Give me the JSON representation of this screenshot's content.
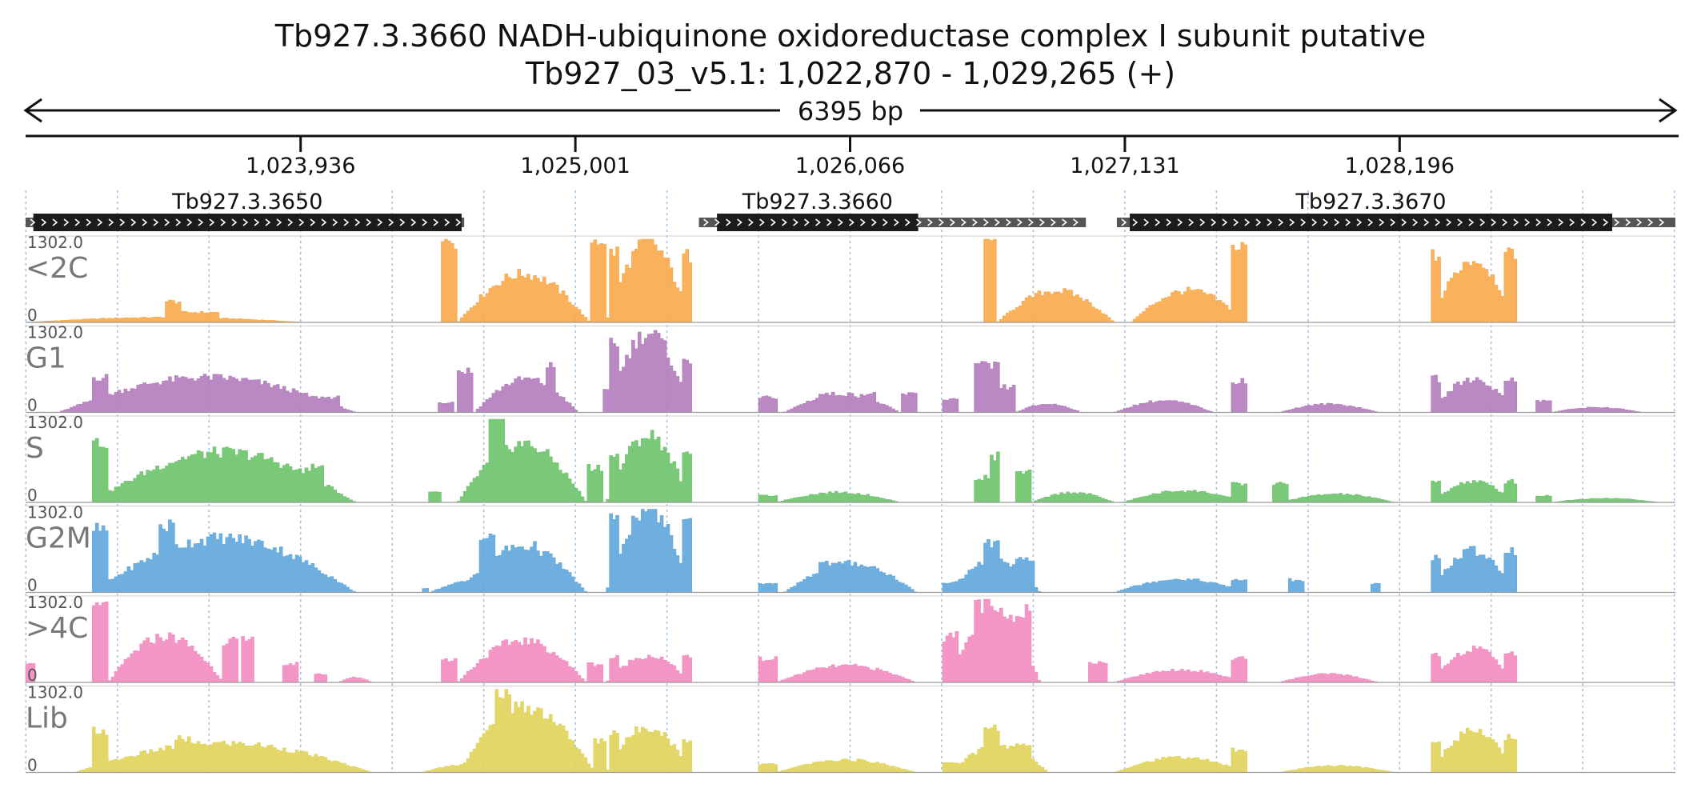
{
  "chart_data": {
    "type": "area",
    "title": "Tb927.3.3660  NADH-ubiquinone oxidoreductase complex I subunit  putative",
    "subtitle": "Tb927_03_v5.1: 1,022,870 - 1,029,265 (+)",
    "span_label": "6395 bp",
    "xlim": [
      1022870,
      1029265
    ],
    "ylim": [
      0,
      1302
    ],
    "x_ticks": [
      {
        "value": 1023936,
        "label": "1,023,936"
      },
      {
        "value": 1025001,
        "label": "1,025,001"
      },
      {
        "value": 1026066,
        "label": "1,026,066"
      },
      {
        "value": 1027131,
        "label": "1,027,131"
      },
      {
        "value": 1028196,
        "label": "1,028,196"
      }
    ],
    "genes": [
      {
        "name": "Tb927.3.3650",
        "label": "Tb927.3.3650",
        "start": 1022900,
        "end": 1024560,
        "utr_start": 1022870,
        "utr_end": 1024570
      },
      {
        "name": "Tb927.3.3660",
        "label": "Tb927.3.3660",
        "start": 1025550,
        "end": 1026330,
        "utr_start": 1025480,
        "utr_end": 1026980
      },
      {
        "name": "Tb927.3.3670",
        "label": "Tb927.3.3670",
        "start": 1027150,
        "end": 1029020,
        "utr_start": 1027100,
        "utr_end": 1029265
      }
    ],
    "tracks": [
      {
        "label": "<2C",
        "scale_max": "1302.0",
        "scale_min": "0",
        "color": "#f8a94a"
      },
      {
        "label": "G1",
        "scale_max": "1302.0",
        "scale_min": "0",
        "color": "#b37bbd"
      },
      {
        "label": "S",
        "scale_max": "1302.0",
        "scale_min": "0",
        "color": "#6cc36a"
      },
      {
        "label": "G2M",
        "scale_max": "1302.0",
        "scale_min": "0",
        "color": "#5ea6dd"
      },
      {
        "label": ">4C",
        "scale_max": "1302.0",
        "scale_min": "0",
        "color": "#f38bbf"
      },
      {
        "label": "Lib",
        "scale_max": "1302.0",
        "scale_min": "0",
        "color": "#e0d35a"
      }
    ]
  }
}
